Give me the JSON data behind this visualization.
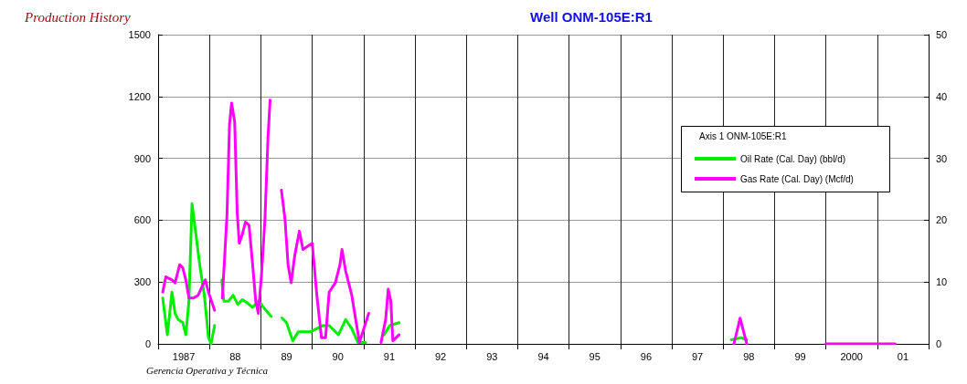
{
  "chart_data": {
    "type": "line",
    "title": "Well ONM-105E:R1",
    "subtitle": "Production History",
    "annotations": [
      "Gerencia Operativa y Técnica"
    ],
    "legend_title": "Axis 1 ONM-105E:R1",
    "legend": "top right",
    "grid": true,
    "marker": "none",
    "line_style": "solid",
    "xlim": [
      1986.5,
      2001.5
    ],
    "xticks": [
      {
        "value": 1986.5,
        "label": null
      },
      1987,
      {
        "value": 1987.5,
        "label": null
      },
      {
        "value": 1988,
        "label": "88"
      },
      {
        "value": 1988.5,
        "label": null
      },
      {
        "value": 1989,
        "label": "89"
      },
      {
        "value": 1989.5,
        "label": null
      },
      {
        "value": 1990,
        "label": "90"
      },
      {
        "value": 1990.5,
        "label": null
      },
      {
        "value": 1991,
        "label": "91"
      },
      {
        "value": 1991.5,
        "label": null
      },
      {
        "value": 1992,
        "label": "92"
      },
      {
        "value": 1992.5,
        "label": null
      },
      {
        "value": 1993,
        "label": "93"
      },
      {
        "value": 1993.5,
        "label": null
      },
      {
        "value": 1994,
        "label": "94"
      },
      {
        "value": 1994.5,
        "label": null
      },
      {
        "value": 1995,
        "label": "95"
      },
      {
        "value": 1995.5,
        "label": null
      },
      {
        "value": 1996,
        "label": "96"
      },
      {
        "value": 1996.5,
        "label": null
      },
      {
        "value": 1997,
        "label": "97"
      },
      {
        "value": 1997.5,
        "label": null
      },
      {
        "value": 1998,
        "label": "98"
      },
      {
        "value": 1998.5,
        "label": null
      },
      {
        "value": 1999,
        "label": "99"
      },
      {
        "value": 1999.5,
        "label": null
      },
      2000,
      {
        "value": 2000.5,
        "label": null
      },
      {
        "value": 2001,
        "label": "01"
      },
      {
        "value": 2001.5,
        "label": null
      }
    ],
    "ylim": [
      0,
      1500
    ],
    "yticks": [
      0,
      300,
      600,
      900,
      1200,
      1500
    ],
    "y2lim": [
      0,
      50
    ],
    "y2ticks": [
      0,
      10,
      20,
      30,
      40,
      50
    ],
    "series": [
      {
        "name": "Oil Rate (Cal. Day) (bbl/d)",
        "color": "#00ee00",
        "x": [
          1986.59,
          1986.68,
          1986.77,
          1986.83,
          1986.89,
          1986.98,
          1987.04,
          1987.1,
          1987.16,
          1987.22,
          1987.31,
          1987.4,
          1987.48,
          1987.53,
          1987.6,
          1987.67,
          1987.74,
          1987.78,
          1987.87,
          1987.96,
          1988.05,
          1988.14,
          1988.23,
          1988.34,
          1988.46,
          1988.55,
          1988.7,
          1988.8,
          1988.91,
          1989.0,
          1989.12,
          1989.23,
          1989.47,
          1989.71,
          1989.83,
          1990.01,
          1990.15,
          1990.27,
          1990.39,
          1990.54,
          1990.7,
          1990.9,
          1991.01,
          1991.19,
          1997.4,
          1997.66,
          1997.75,
          1997.85,
          1997.96
        ],
        "values": [
          222,
          44,
          251,
          148,
          118,
          103,
          44,
          207,
          680,
          562,
          384,
          236,
          30,
          0,
          89,
          null,
          310,
          207,
          207,
          236,
          192,
          214,
          200,
          177,
          210,
          177,
          133,
          null,
          126,
          103,
          15,
          59,
          59,
          89,
          89,
          44,
          118,
          74,
          7,
          7,
          null,
          44,
          89,
          103,
          null,
          20,
          25,
          30,
          20
        ]
      },
      {
        "name": "Gas Rate (Cal. Day) (Mcf/d)",
        "color": "#ff00ff",
        "x": [
          1986.59,
          1986.65,
          1986.77,
          1986.83,
          1986.92,
          1986.98,
          1987.04,
          1987.1,
          1987.19,
          1987.28,
          1987.36,
          1987.42,
          1987.48,
          1987.6,
          1987.67,
          1987.75,
          1987.8,
          1987.84,
          1987.89,
          1987.93,
          1987.99,
          1988.04,
          1988.08,
          1988.14,
          1988.2,
          1988.27,
          1988.34,
          1988.4,
          1988.45,
          1988.51,
          1988.58,
          1988.64,
          1988.68,
          1988.8,
          1988.9,
          1988.97,
          1989.03,
          1989.09,
          1989.16,
          1989.25,
          1989.32,
          1989.41,
          1989.5,
          1989.59,
          1989.68,
          1989.76,
          1989.83,
          1989.95,
          1990.04,
          1990.08,
          1990.15,
          1990.27,
          1990.42,
          1990.6,
          1990.7,
          1990.84,
          1990.93,
          1990.98,
          1991.03,
          1991.07,
          1991.19,
          1997.4,
          1997.71,
          1997.83,
          1997.96,
          1998.5,
          1999.5,
          2000.85
        ],
        "values": [
          251,
          325,
          310,
          296,
          384,
          369,
          310,
          222,
          222,
          236,
          281,
          310,
          251,
          163,
          null,
          222,
          443,
          621,
          1064,
          1168,
          1079,
          636,
          488,
          532,
          591,
          576,
          384,
          207,
          148,
          325,
          606,
          1005,
          1182,
          null,
          746,
          606,
          384,
          296,
          429,
          547,
          458,
          473,
          488,
          236,
          30,
          30,
          251,
          296,
          384,
          458,
          355,
          236,
          7,
          148,
          null,
          7,
          118,
          266,
          207,
          15,
          44,
          null,
          0,
          125,
          0,
          null,
          0,
          0
        ]
      }
    ]
  }
}
